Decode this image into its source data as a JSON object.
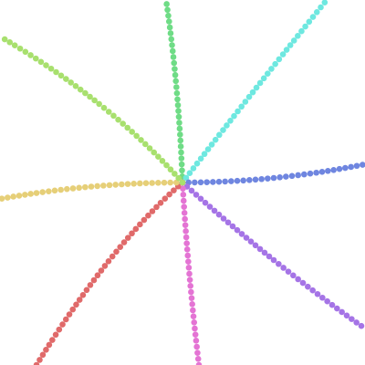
{
  "background": "#ffffff",
  "arms": [
    {
      "name": "green-arm",
      "color": "#6fdc86"
    },
    {
      "name": "cyan-arm",
      "color": "#6ee8e0"
    },
    {
      "name": "blue-arm",
      "color": "#6f86e0"
    },
    {
      "name": "purple-arm",
      "color": "#a574e6"
    },
    {
      "name": "magenta-arm",
      "color": "#e474d4"
    },
    {
      "name": "red-arm",
      "color": "#e06a6a"
    },
    {
      "name": "yellow-arm",
      "color": "#e6cf78"
    },
    {
      "name": "lime-arm",
      "color": "#a8e06e"
    }
  ]
}
